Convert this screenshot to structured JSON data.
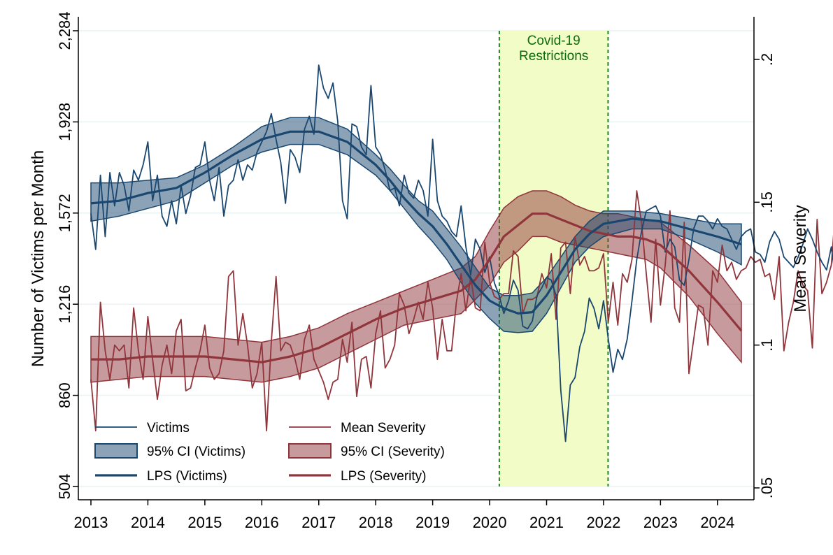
{
  "chart_data": {
    "type": "line",
    "xlabel": "",
    "ylabel": "Number of Victims per Month",
    "ylabel_right": "Mean Severity",
    "xlim": [
      2013,
      2024.42
    ],
    "ylim": [
      504,
      2284
    ],
    "ylim_right": [
      0.05,
      0.21
    ],
    "x_ticks": [
      "2013",
      "2014",
      "2015",
      "2016",
      "2017",
      "2018",
      "2019",
      "2020",
      "2021",
      "2022",
      "2023",
      "2024"
    ],
    "y_ticks": [
      "504",
      "860",
      "1,216",
      "1,572",
      "1,928",
      "2,284"
    ],
    "y_ticks_right": [
      ".05",
      ".1",
      ".15",
      ".2"
    ],
    "grid": true,
    "annotation": {
      "label_line1": "Covid-19",
      "label_line2": "Restrictions",
      "x_start": 2020.17,
      "x_end": 2022.08,
      "fill": "#f2fcc6",
      "line_color": "#1f8a1f"
    },
    "legend": {
      "placement": "bottom-left",
      "entries": [
        {
          "label": "Victims",
          "kind": "thin",
          "color": "#1a476f"
        },
        {
          "label": "Mean Severity",
          "kind": "thin",
          "color": "#90353b"
        },
        {
          "label": "95% CI (Victims)",
          "kind": "band",
          "color": "#1a476f"
        },
        {
          "label": "95% CI (Severity)",
          "kind": "band",
          "color": "#90353b"
        },
        {
          "label": "LPS (Victims)",
          "kind": "thick",
          "color": "#1a476f"
        },
        {
          "label": "LPS (Severity)",
          "kind": "thick",
          "color": "#90353b"
        }
      ]
    },
    "series": [
      {
        "name": "Victims",
        "axis": "left",
        "color": "#1a476f",
        "x_start": 2013,
        "step": 0.08333,
        "values": [
          1570,
          1430,
          1720,
          1480,
          1730,
          1600,
          1730,
          1680,
          1580,
          1740,
          1700,
          1760,
          1850,
          1620,
          1720,
          1560,
          1520,
          1620,
          1530,
          1680,
          1570,
          1640,
          1750,
          1760,
          1850,
          1700,
          1620,
          1750,
          1560,
          1680,
          1700,
          1780,
          1700,
          1760,
          1740,
          1810,
          1850,
          1890,
          1960,
          1860,
          1770,
          1610,
          1820,
          1790,
          1730,
          1900,
          1950,
          1880,
          2150,
          2060,
          2020,
          2080,
          1930,
          1620,
          1550,
          1920,
          1910,
          1830,
          1800,
          2070,
          1830,
          1800,
          1740,
          1660,
          1670,
          1600,
          1720,
          1650,
          1630,
          1700,
          1660,
          1560,
          1860,
          1620,
          1560,
          1540,
          1500,
          1480,
          1600,
          1440,
          1330,
          1470,
          1430,
          1340,
          1400,
          1300,
          1250,
          1180,
          1230,
          1310,
          1270,
          1130,
          1120,
          1150,
          1250,
          1280,
          1320,
          1310,
          1250,
          880,
          680,
          900,
          930,
          1050,
          1110,
          1240,
          1200,
          1120,
          1230,
          1080,
          950,
          1040,
          1000,
          1080,
          1230,
          1390,
          1500,
          1580,
          1590,
          1600,
          1560,
          1420,
          1470,
          1440,
          1310,
          1290,
          1390,
          1510,
          1560,
          1560,
          1540,
          1510,
          1550,
          1520,
          1510,
          1470,
          1430,
          1480,
          1500,
          1510,
          1420,
          1410,
          1380,
          1460,
          1500,
          1470,
          1400,
          1380,
          1360,
          1400,
          1450,
          1510,
          1470,
          1420,
          1380,
          1350,
          1440,
          1300,
          1430,
          1560,
          1590,
          1550,
          1410,
          1410,
          1390,
          1370,
          1320,
          1300,
          1380,
          1450
        ]
      },
      {
        "name": "Mean Severity",
        "axis": "right",
        "color": "#90353b",
        "x_start": 2013,
        "step": 0.08333,
        "values": [
          0.088,
          0.07,
          0.115,
          0.098,
          0.088,
          0.1,
          0.098,
          0.1,
          0.085,
          0.113,
          0.098,
          0.088,
          0.11,
          0.095,
          0.081,
          0.093,
          0.1,
          0.09,
          0.105,
          0.109,
          0.084,
          0.085,
          0.092,
          0.098,
          0.107,
          0.092,
          0.088,
          0.09,
          0.098,
          0.124,
          0.126,
          0.1,
          0.111,
          0.1,
          0.085,
          0.09,
          0.101,
          0.07,
          0.101,
          0.124,
          0.098,
          0.101,
          0.1,
          0.095,
          0.088,
          0.102,
          0.107,
          0.095,
          0.091,
          0.087,
          0.081,
          0.087,
          0.088,
          0.102,
          0.094,
          0.108,
          0.082,
          0.095,
          0.096,
          0.085,
          0.104,
          0.112,
          0.092,
          0.095,
          0.1,
          0.118,
          0.114,
          0.104,
          0.109,
          0.115,
          0.109,
          0.122,
          0.113,
          0.095,
          0.109,
          0.098,
          0.098,
          0.115,
          0.125,
          0.112,
          0.124,
          0.113,
          0.112,
          0.136,
          0.122,
          0.117,
          0.116,
          0.118,
          0.118,
          0.133,
          0.131,
          0.111,
          0.116,
          0.116,
          0.117,
          0.125,
          0.12,
          0.132,
          0.109,
          0.134,
          0.136,
          0.118,
          0.138,
          0.128,
          0.131,
          0.126,
          0.126,
          0.127,
          0.132,
          0.108,
          0.122,
          0.107,
          0.125,
          0.122,
          0.13,
          0.154,
          0.143,
          0.125,
          0.108,
          0.137,
          0.114,
          0.128,
          0.147,
          0.113,
          0.108,
          0.143,
          0.09,
          0.102,
          0.114,
          0.113,
          0.1,
          0.126,
          0.122,
          0.135,
          0.126,
          0.129,
          0.123,
          0.126,
          0.127,
          0.131,
          0.129,
          0.13,
          0.124,
          0.125,
          0.116,
          0.131,
          0.098,
          0.108,
          0.115,
          0.126,
          0.121,
          0.119,
          0.099,
          0.144,
          0.118,
          0.122,
          0.128,
          0.15,
          0.138,
          0.116,
          0.112,
          0.114,
          0.138,
          0.117,
          0.096,
          0.105,
          0.125,
          0.108,
          0.105,
          0.1,
          0.099,
          0.109,
          0.104,
          0.118,
          0.121,
          0.105,
          0.124,
          0.12,
          0.109,
          0.089,
          0.082,
          0.094,
          0.082,
          0.087,
          0.096
        ]
      },
      {
        "name": "LPS (Victims)",
        "axis": "left",
        "color": "#1a476f",
        "x": [
          2013,
          2013.5,
          2014,
          2014.5,
          2015,
          2015.5,
          2016,
          2016.5,
          2017,
          2017.5,
          2018,
          2018.25,
          2018.5,
          2018.75,
          2019,
          2019.25,
          2019.5,
          2019.75,
          2020,
          2020.25,
          2020.5,
          2020.75,
          2021,
          2021.25,
          2021.5,
          2021.75,
          2022,
          2022.5,
          2023,
          2023.5,
          2024,
          2024.42
        ],
        "values": [
          1610,
          1620,
          1650,
          1670,
          1730,
          1800,
          1860,
          1890,
          1890,
          1850,
          1760,
          1700,
          1630,
          1570,
          1520,
          1450,
          1370,
          1290,
          1230,
          1200,
          1180,
          1185,
          1250,
          1340,
          1430,
          1490,
          1530,
          1550,
          1540,
          1510,
          1480,
          1450
        ]
      },
      {
        "name": "95% CI (Victims) upper",
        "axis": "left",
        "color": "#1a476f",
        "x": [
          2013,
          2013.5,
          2014,
          2014.5,
          2015,
          2015.5,
          2016,
          2016.5,
          2017,
          2017.5,
          2018,
          2018.25,
          2018.5,
          2018.75,
          2019,
          2019.25,
          2019.5,
          2019.75,
          2020,
          2020.25,
          2020.5,
          2020.75,
          2021,
          2021.25,
          2021.5,
          2021.75,
          2022,
          2022.5,
          2023,
          2023.5,
          2024,
          2024.42
        ],
        "values": [
          1690,
          1690,
          1700,
          1710,
          1760,
          1830,
          1910,
          1945,
          1945,
          1900,
          1800,
          1745,
          1680,
          1620,
          1580,
          1510,
          1440,
          1360,
          1280,
          1250,
          1250,
          1260,
          1320,
          1400,
          1480,
          1540,
          1580,
          1580,
          1570,
          1550,
          1530,
          1530
        ]
      },
      {
        "name": "95% CI (Victims) lower",
        "axis": "left",
        "color": "#1a476f",
        "x": [
          2013,
          2013.5,
          2014,
          2014.5,
          2015,
          2015.5,
          2016,
          2016.5,
          2017,
          2017.5,
          2018,
          2018.25,
          2018.5,
          2018.75,
          2019,
          2019.25,
          2019.5,
          2019.75,
          2020,
          2020.25,
          2020.5,
          2020.75,
          2021,
          2021.25,
          2021.5,
          2021.75,
          2022,
          2022.5,
          2023,
          2023.5,
          2024,
          2024.42
        ],
        "values": [
          1540,
          1560,
          1590,
          1620,
          1690,
          1760,
          1810,
          1840,
          1840,
          1800,
          1720,
          1660,
          1590,
          1520,
          1460,
          1390,
          1300,
          1220,
          1160,
          1110,
          1105,
          1110,
          1180,
          1280,
          1380,
          1440,
          1480,
          1510,
          1510,
          1470,
          1420,
          1370
        ]
      },
      {
        "name": "LPS (Severity)",
        "axis": "right",
        "color": "#90353b",
        "x": [
          2013,
          2013.5,
          2014,
          2014.5,
          2015,
          2015.5,
          2016,
          2016.5,
          2017,
          2017.5,
          2018,
          2018.5,
          2019,
          2019.5,
          2019.75,
          2020,
          2020.25,
          2020.5,
          2020.75,
          2021,
          2021.25,
          2021.5,
          2021.75,
          2022,
          2022.25,
          2022.5,
          2022.75,
          2023,
          2023.5,
          2024,
          2024.42
        ],
        "values": [
          0.095,
          0.095,
          0.096,
          0.096,
          0.096,
          0.095,
          0.094,
          0.096,
          0.099,
          0.104,
          0.109,
          0.113,
          0.116,
          0.119,
          0.123,
          0.13,
          0.138,
          0.142,
          0.146,
          0.146,
          0.144,
          0.142,
          0.14,
          0.139,
          0.138,
          0.138,
          0.137,
          0.135,
          0.126,
          0.115,
          0.105
        ]
      },
      {
        "name": "95% CI (Severity) upper",
        "axis": "right",
        "color": "#90353b",
        "x": [
          2013,
          2013.5,
          2014,
          2014.5,
          2015,
          2015.5,
          2016,
          2016.5,
          2017,
          2017.5,
          2018,
          2018.5,
          2019,
          2019.5,
          2019.75,
          2020,
          2020.25,
          2020.5,
          2020.75,
          2021,
          2021.25,
          2021.5,
          2021.75,
          2022,
          2022.25,
          2022.5,
          2022.75,
          2023,
          2023.5,
          2024,
          2024.42
        ],
        "values": [
          0.103,
          0.103,
          0.103,
          0.103,
          0.103,
          0.102,
          0.101,
          0.103,
          0.106,
          0.111,
          0.115,
          0.119,
          0.123,
          0.127,
          0.131,
          0.14,
          0.148,
          0.152,
          0.154,
          0.154,
          0.152,
          0.149,
          0.147,
          0.146,
          0.146,
          0.145,
          0.144,
          0.143,
          0.135,
          0.126,
          0.115
        ]
      },
      {
        "name": "95% CI (Severity) lower",
        "axis": "right",
        "color": "#90353b",
        "x": [
          2013,
          2013.5,
          2014,
          2014.5,
          2015,
          2015.5,
          2016,
          2016.5,
          2017,
          2017.5,
          2018,
          2018.5,
          2019,
          2019.5,
          2019.75,
          2020,
          2020.25,
          2020.5,
          2020.75,
          2021,
          2021.25,
          2021.5,
          2021.75,
          2022,
          2022.25,
          2022.5,
          2022.75,
          2023,
          2023.5,
          2024,
          2024.42
        ],
        "values": [
          0.087,
          0.088,
          0.089,
          0.089,
          0.089,
          0.088,
          0.087,
          0.089,
          0.092,
          0.097,
          0.102,
          0.107,
          0.109,
          0.111,
          0.116,
          0.121,
          0.129,
          0.133,
          0.138,
          0.138,
          0.136,
          0.135,
          0.134,
          0.133,
          0.132,
          0.131,
          0.13,
          0.127,
          0.117,
          0.104,
          0.094
        ]
      }
    ]
  }
}
